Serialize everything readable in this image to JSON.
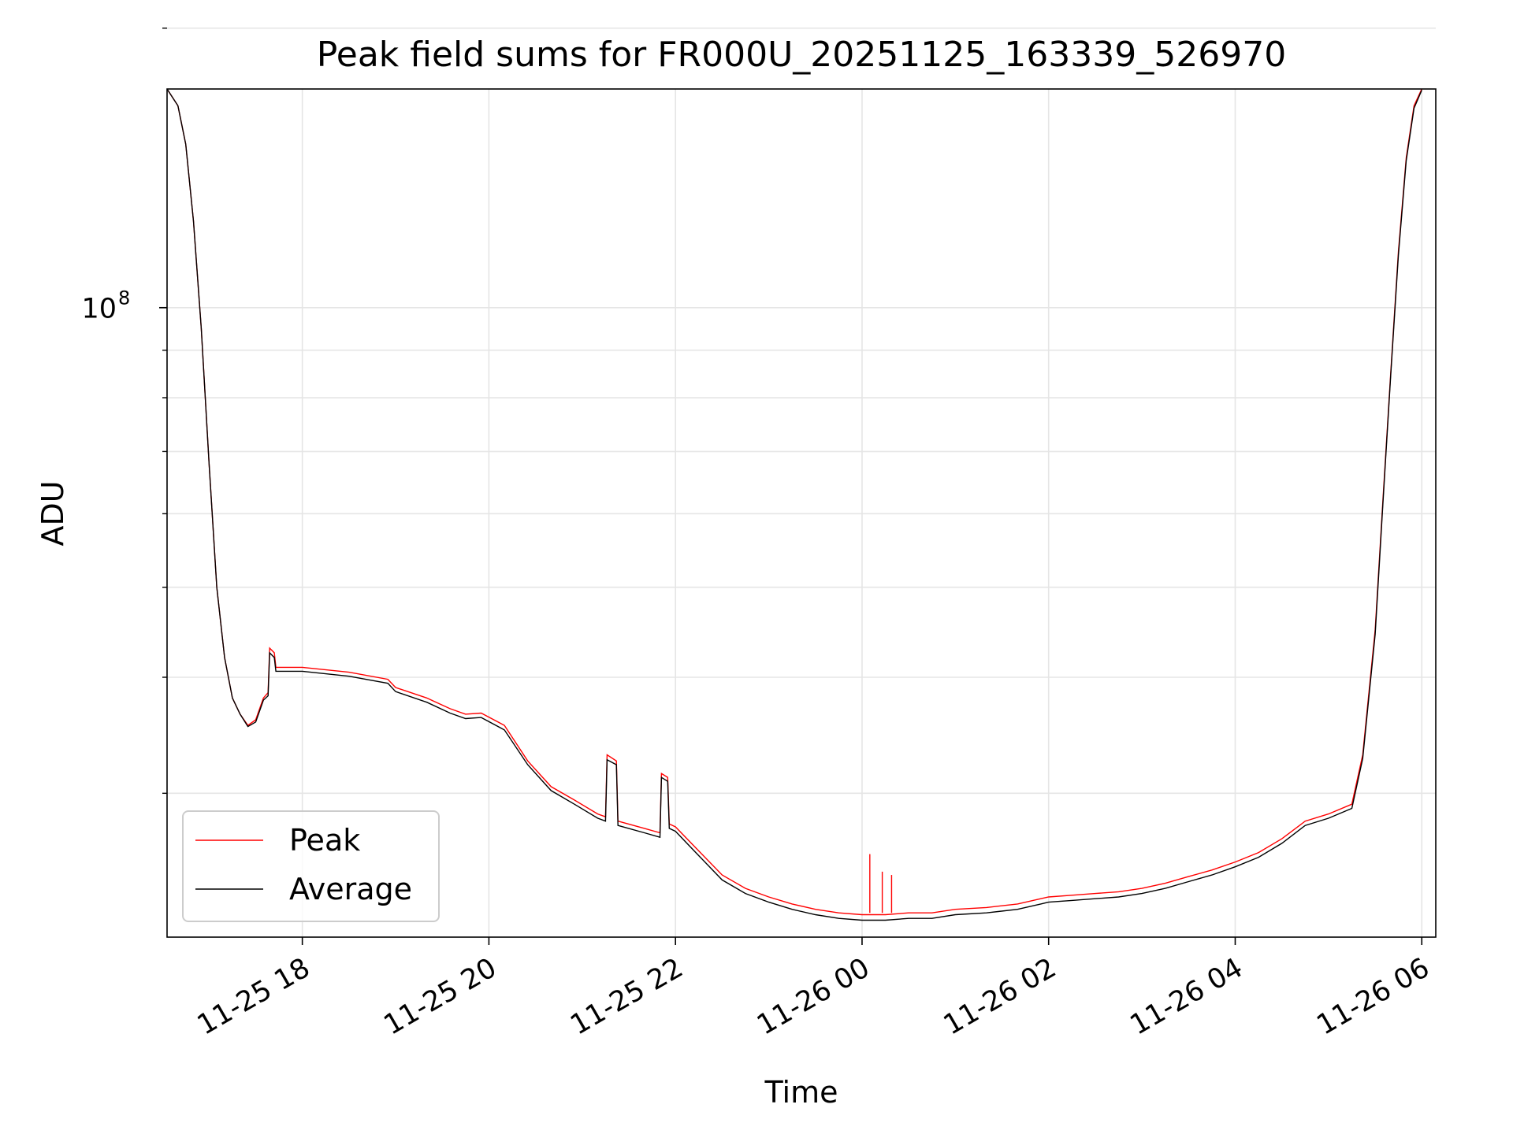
{
  "chart_data": {
    "type": "line",
    "title": "Peak field sums for FR000U_20251125_163339_526970",
    "xlabel": "Time",
    "ylabel": "ADU",
    "yscale": "log",
    "ylim": [
      21000000,
      172000000
    ],
    "xlim": [
      "2025-11-25T16:33",
      "2025-11-26T06:09"
    ],
    "x_ticks": [
      "2025-11-25T18:00",
      "2025-11-25T20:00",
      "2025-11-25T22:00",
      "2025-11-26T00:00",
      "2025-11-26T02:00",
      "2025-11-26T04:00",
      "2025-11-26T06:00"
    ],
    "x_tick_labels": [
      "11-25 18",
      "11-25 20",
      "11-25 22",
      "11-26 00",
      "11-26 02",
      "11-26 04",
      "11-26 06"
    ],
    "y_tick_labels": [
      {
        "value": 100000000,
        "base": "10",
        "exp": "8"
      }
    ],
    "y_minor_ticks": [
      30000000,
      40000000,
      50000000,
      60000000,
      70000000,
      80000000,
      90000000,
      200000000
    ],
    "grid": true,
    "legend_position": "lower left",
    "series": [
      {
        "name": "Peak",
        "color": "#ff0000",
        "points": [
          [
            "2025-11-25T16:33",
            172000000
          ],
          [
            "2025-11-25T16:40",
            165000000
          ],
          [
            "2025-11-25T16:45",
            150000000
          ],
          [
            "2025-11-25T16:50",
            124000000
          ],
          [
            "2025-11-25T16:55",
            95000000
          ],
          [
            "2025-11-25T17:00",
            68000000
          ],
          [
            "2025-11-25T17:05",
            50000000
          ],
          [
            "2025-11-25T17:10",
            42000000
          ],
          [
            "2025-11-25T17:15",
            38000000
          ],
          [
            "2025-11-25T17:20",
            36500000
          ],
          [
            "2025-11-25T17:25",
            35500000
          ],
          [
            "2025-11-25T17:30",
            36000000
          ],
          [
            "2025-11-25T17:35",
            38000000
          ],
          [
            "2025-11-25T17:38",
            38500000
          ],
          [
            "2025-11-25T17:39",
            43000000
          ],
          [
            "2025-11-25T17:42",
            42500000
          ],
          [
            "2025-11-25T17:43",
            41000000
          ],
          [
            "2025-11-25T18:00",
            41000000
          ],
          [
            "2025-11-25T18:30",
            40500000
          ],
          [
            "2025-11-25T18:55",
            39800000
          ],
          [
            "2025-11-25T19:00",
            39000000
          ],
          [
            "2025-11-25T19:20",
            38000000
          ],
          [
            "2025-11-25T19:35",
            37000000
          ],
          [
            "2025-11-25T19:45",
            36500000
          ],
          [
            "2025-11-25T19:55",
            36600000
          ],
          [
            "2025-11-25T20:10",
            35500000
          ],
          [
            "2025-11-25T20:25",
            32500000
          ],
          [
            "2025-11-25T20:40",
            30500000
          ],
          [
            "2025-11-25T20:55",
            29500000
          ],
          [
            "2025-11-25T21:10",
            28500000
          ],
          [
            "2025-11-25T21:15",
            28300000
          ],
          [
            "2025-11-25T21:16",
            33000000
          ],
          [
            "2025-11-25T21:22",
            32500000
          ],
          [
            "2025-11-25T21:23",
            28000000
          ],
          [
            "2025-11-25T21:40",
            27500000
          ],
          [
            "2025-11-25T21:50",
            27200000
          ],
          [
            "2025-11-25T21:51",
            31500000
          ],
          [
            "2025-11-25T21:55",
            31200000
          ],
          [
            "2025-11-25T21:56",
            27800000
          ],
          [
            "2025-11-25T22:00",
            27600000
          ],
          [
            "2025-11-25T22:15",
            26000000
          ],
          [
            "2025-11-25T22:30",
            24500000
          ],
          [
            "2025-11-25T22:45",
            23700000
          ],
          [
            "2025-11-25T23:00",
            23200000
          ],
          [
            "2025-11-25T23:15",
            22800000
          ],
          [
            "2025-11-25T23:30",
            22500000
          ],
          [
            "2025-11-25T23:45",
            22300000
          ],
          [
            "2025-11-26T00:00",
            22200000
          ],
          [
            "2025-11-26T00:15",
            22200000
          ],
          [
            "2025-11-26T00:30",
            22300000
          ],
          [
            "2025-11-26T00:45",
            22300000
          ],
          [
            "2025-11-26T01:00",
            22500000
          ],
          [
            "2025-11-26T01:20",
            22600000
          ],
          [
            "2025-11-26T01:40",
            22800000
          ],
          [
            "2025-11-26T01:55",
            23100000
          ],
          [
            "2025-11-26T02:00",
            23200000
          ],
          [
            "2025-11-26T02:15",
            23300000
          ],
          [
            "2025-11-26T02:30",
            23400000
          ],
          [
            "2025-11-26T02:45",
            23500000
          ],
          [
            "2025-11-26T03:00",
            23700000
          ],
          [
            "2025-11-26T03:15",
            24000000
          ],
          [
            "2025-11-26T03:30",
            24400000
          ],
          [
            "2025-11-26T03:45",
            24800000
          ],
          [
            "2025-11-26T04:00",
            25300000
          ],
          [
            "2025-11-26T04:15",
            25900000
          ],
          [
            "2025-11-26T04:30",
            26800000
          ],
          [
            "2025-11-26T04:45",
            28000000
          ],
          [
            "2025-11-26T05:00",
            28500000
          ],
          [
            "2025-11-26T05:15",
            29200000
          ],
          [
            "2025-11-26T05:22",
            33000000
          ],
          [
            "2025-11-26T05:30",
            45000000
          ],
          [
            "2025-11-26T05:35",
            62000000
          ],
          [
            "2025-11-26T05:40",
            85000000
          ],
          [
            "2025-11-26T05:45",
            115000000
          ],
          [
            "2025-11-26T05:50",
            145000000
          ],
          [
            "2025-11-26T05:55",
            165000000
          ],
          [
            "2025-11-26T06:00",
            172000000
          ]
        ]
      },
      {
        "name": "Average",
        "color": "#000000",
        "points": [
          [
            "2025-11-25T16:33",
            172000000
          ],
          [
            "2025-11-25T16:40",
            165000000
          ],
          [
            "2025-11-25T16:45",
            150000000
          ],
          [
            "2025-11-25T16:50",
            124000000
          ],
          [
            "2025-11-25T16:55",
            95000000
          ],
          [
            "2025-11-25T17:00",
            68000000
          ],
          [
            "2025-11-25T17:05",
            50000000
          ],
          [
            "2025-11-25T17:10",
            42000000
          ],
          [
            "2025-11-25T17:15",
            38000000
          ],
          [
            "2025-11-25T17:20",
            36500000
          ],
          [
            "2025-11-25T17:25",
            35400000
          ],
          [
            "2025-11-25T17:30",
            35800000
          ],
          [
            "2025-11-25T17:35",
            37800000
          ],
          [
            "2025-11-25T17:38",
            38200000
          ],
          [
            "2025-11-25T17:39",
            42500000
          ],
          [
            "2025-11-25T17:42",
            42000000
          ],
          [
            "2025-11-25T17:43",
            40600000
          ],
          [
            "2025-11-25T18:00",
            40600000
          ],
          [
            "2025-11-25T18:30",
            40100000
          ],
          [
            "2025-11-25T18:55",
            39400000
          ],
          [
            "2025-11-25T19:00",
            38600000
          ],
          [
            "2025-11-25T19:20",
            37600000
          ],
          [
            "2025-11-25T19:35",
            36600000
          ],
          [
            "2025-11-25T19:45",
            36100000
          ],
          [
            "2025-11-25T19:55",
            36200000
          ],
          [
            "2025-11-25T20:10",
            35100000
          ],
          [
            "2025-11-25T20:25",
            32200000
          ],
          [
            "2025-11-25T20:40",
            30200000
          ],
          [
            "2025-11-25T20:55",
            29200000
          ],
          [
            "2025-11-25T21:10",
            28200000
          ],
          [
            "2025-11-25T21:15",
            28000000
          ],
          [
            "2025-11-25T21:16",
            32600000
          ],
          [
            "2025-11-25T21:22",
            32200000
          ],
          [
            "2025-11-25T21:23",
            27700000
          ],
          [
            "2025-11-25T21:40",
            27200000
          ],
          [
            "2025-11-25T21:50",
            26900000
          ],
          [
            "2025-11-25T21:51",
            31200000
          ],
          [
            "2025-11-25T21:55",
            30900000
          ],
          [
            "2025-11-25T21:56",
            27500000
          ],
          [
            "2025-11-25T22:00",
            27300000
          ],
          [
            "2025-11-25T22:15",
            25700000
          ],
          [
            "2025-11-25T22:30",
            24200000
          ],
          [
            "2025-11-25T22:45",
            23400000
          ],
          [
            "2025-11-25T23:00",
            22900000
          ],
          [
            "2025-11-25T23:15",
            22500000
          ],
          [
            "2025-11-25T23:30",
            22200000
          ],
          [
            "2025-11-25T23:45",
            22000000
          ],
          [
            "2025-11-26T00:00",
            21900000
          ],
          [
            "2025-11-26T00:15",
            21900000
          ],
          [
            "2025-11-26T00:30",
            22000000
          ],
          [
            "2025-11-26T00:45",
            22000000
          ],
          [
            "2025-11-26T01:00",
            22200000
          ],
          [
            "2025-11-26T01:20",
            22300000
          ],
          [
            "2025-11-26T01:40",
            22500000
          ],
          [
            "2025-11-26T01:55",
            22800000
          ],
          [
            "2025-11-26T02:00",
            22900000
          ],
          [
            "2025-11-26T02:15",
            23000000
          ],
          [
            "2025-11-26T02:30",
            23100000
          ],
          [
            "2025-11-26T02:45",
            23200000
          ],
          [
            "2025-11-26T03:00",
            23400000
          ],
          [
            "2025-11-26T03:15",
            23700000
          ],
          [
            "2025-11-26T03:30",
            24100000
          ],
          [
            "2025-11-26T03:45",
            24500000
          ],
          [
            "2025-11-26T04:00",
            25000000
          ],
          [
            "2025-11-26T04:15",
            25600000
          ],
          [
            "2025-11-26T04:30",
            26500000
          ],
          [
            "2025-11-26T04:45",
            27700000
          ],
          [
            "2025-11-26T05:00",
            28200000
          ],
          [
            "2025-11-26T05:15",
            28900000
          ],
          [
            "2025-11-26T05:22",
            32700000
          ],
          [
            "2025-11-26T05:30",
            44500000
          ],
          [
            "2025-11-26T05:35",
            61500000
          ],
          [
            "2025-11-26T05:40",
            84500000
          ],
          [
            "2025-11-26T05:45",
            114000000
          ],
          [
            "2025-11-26T05:50",
            144000000
          ],
          [
            "2025-11-26T05:55",
            164000000
          ],
          [
            "2025-11-26T06:00",
            171500000
          ]
        ]
      }
    ],
    "peak_spikes": [
      [
        "2025-11-26T00:05",
        25800000
      ],
      [
        "2025-11-26T00:13",
        24700000
      ],
      [
        "2025-11-26T00:19",
        24500000
      ]
    ]
  }
}
